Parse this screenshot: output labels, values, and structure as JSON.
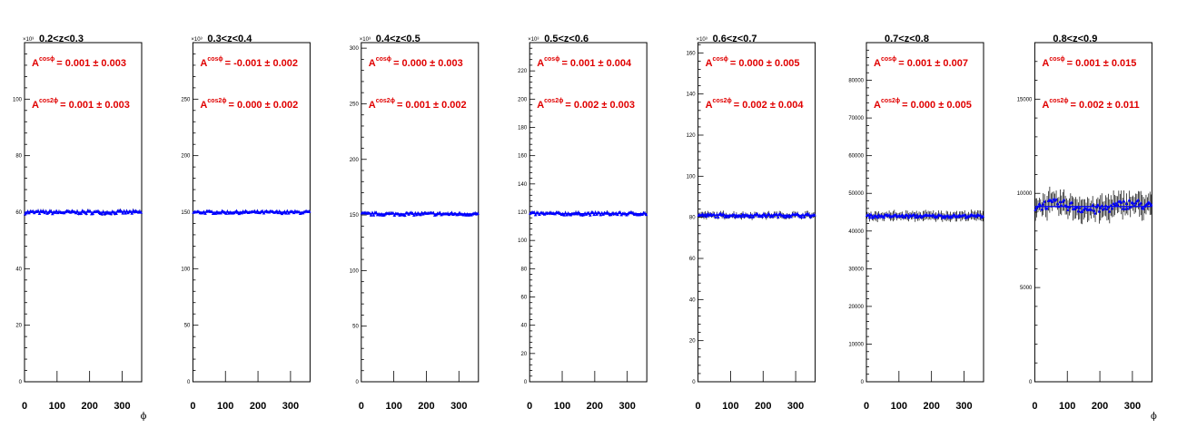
{
  "chart_data": [
    {
      "type": "scatter",
      "title": "0.2<z<0.3",
      "multiplier": "×10³",
      "xlabel": "ϕ",
      "xlim": [
        0,
        360
      ],
      "x_ticks": [
        "0",
        "100",
        "200",
        "300"
      ],
      "ylim": [
        0,
        120
      ],
      "y_ticks": [
        "0",
        "20",
        "40",
        "60",
        "80",
        "100"
      ],
      "level": 60,
      "spread": 0.6,
      "error": 0.5,
      "annotations": [
        {
          "sup": "cosϕ",
          "text": "= 0.001 ± 0.003"
        },
        {
          "sup": "cos2ϕ",
          "text": "= 0.001 ± 0.003"
        }
      ]
    },
    {
      "type": "scatter",
      "title": "0.3<z<0.4",
      "multiplier": "×10³",
      "xlabel": "",
      "xlim": [
        0,
        360
      ],
      "x_ticks": [
        "0",
        "100",
        "200",
        "300"
      ],
      "ylim": [
        0,
        300
      ],
      "y_ticks": [
        "0",
        "50",
        "100",
        "150",
        "200",
        "250"
      ],
      "level": 150,
      "spread": 1.2,
      "error": 1.0,
      "annotations": [
        {
          "sup": "cosϕ",
          "text": "= -0.001 ± 0.002"
        },
        {
          "sup": "cos2ϕ",
          "text": "= 0.000 ± 0.002"
        }
      ]
    },
    {
      "type": "scatter",
      "title": "0.4<z<0.5",
      "multiplier": "×10³",
      "xlabel": "",
      "xlim": [
        0,
        360
      ],
      "x_ticks": [
        "0",
        "100",
        "200",
        "300"
      ],
      "ylim": [
        0,
        305
      ],
      "y_ticks": [
        "0",
        "50",
        "100",
        "150",
        "200",
        "250",
        "300"
      ],
      "level": 151,
      "spread": 1.3,
      "error": 1.2,
      "annotations": [
        {
          "sup": "cosϕ",
          "text": "= 0.000 ± 0.003"
        },
        {
          "sup": "cos2ϕ",
          "text": "= 0.001 ± 0.002"
        }
      ]
    },
    {
      "type": "scatter",
      "title": "0.5<z<0.6",
      "multiplier": "×10³",
      "xlabel": "",
      "xlim": [
        0,
        360
      ],
      "x_ticks": [
        "0",
        "100",
        "200",
        "300"
      ],
      "ylim": [
        0,
        240
      ],
      "y_ticks": [
        "0",
        "20",
        "40",
        "60",
        "80",
        "100",
        "120",
        "140",
        "160",
        "180",
        "200",
        "220"
      ],
      "level": 119,
      "spread": 1.0,
      "error": 1.0,
      "annotations": [
        {
          "sup": "cosϕ",
          "text": "= 0.001 ± 0.004"
        },
        {
          "sup": "cos2ϕ",
          "text": "= 0.002 ± 0.003"
        }
      ]
    },
    {
      "type": "scatter",
      "title": "0.6<z<0.7",
      "multiplier": "×10³",
      "xlabel": "",
      "xlim": [
        0,
        360
      ],
      "x_ticks": [
        "0",
        "100",
        "200",
        "300"
      ],
      "ylim": [
        0,
        165
      ],
      "y_ticks": [
        "0",
        "20",
        "40",
        "60",
        "80",
        "100",
        "120",
        "140",
        "160"
      ],
      "level": 81,
      "spread": 0.8,
      "error": 1.2,
      "annotations": [
        {
          "sup": "cosϕ",
          "text": "= 0.000 ± 0.005"
        },
        {
          "sup": "cos2ϕ",
          "text": "= 0.002 ± 0.004"
        }
      ]
    },
    {
      "type": "scatter",
      "title": "0.7<z<0.8",
      "multiplier": "",
      "xlabel": "",
      "xlim": [
        0,
        360
      ],
      "x_ticks": [
        "0",
        "100",
        "200",
        "300"
      ],
      "ylim": [
        0,
        90000
      ],
      "y_ticks": [
        "0",
        "10000",
        "20000",
        "30000",
        "40000",
        "50000",
        "60000",
        "70000",
        "80000"
      ],
      "level": 44000,
      "spread": 400,
      "error": 1000,
      "annotations": [
        {
          "sup": "cosϕ",
          "text": "= 0.001 ± 0.007"
        },
        {
          "sup": "cos2ϕ",
          "text": "= 0.000 ± 0.005"
        }
      ]
    },
    {
      "type": "scatter",
      "title": "0.8<z<0.9",
      "multiplier": "",
      "xlabel": "ϕ",
      "xlim": [
        0,
        360
      ],
      "x_ticks": [
        "0",
        "100",
        "200",
        "300"
      ],
      "ylim": [
        0,
        18000
      ],
      "y_ticks": [
        "0",
        "5000",
        "10000",
        "15000"
      ],
      "level": 9300,
      "spread": 250,
      "error": 500,
      "annotations": [
        {
          "sup": "cosϕ",
          "text": "= 0.001 ± 0.015"
        },
        {
          "sup": "cos2ϕ",
          "text": "= 0.002 ± 0.011"
        }
      ]
    }
  ],
  "colors": {
    "axis": "#000000",
    "marker": "#0000ff",
    "error_bar": "#000000",
    "annotation": "#e00000"
  }
}
